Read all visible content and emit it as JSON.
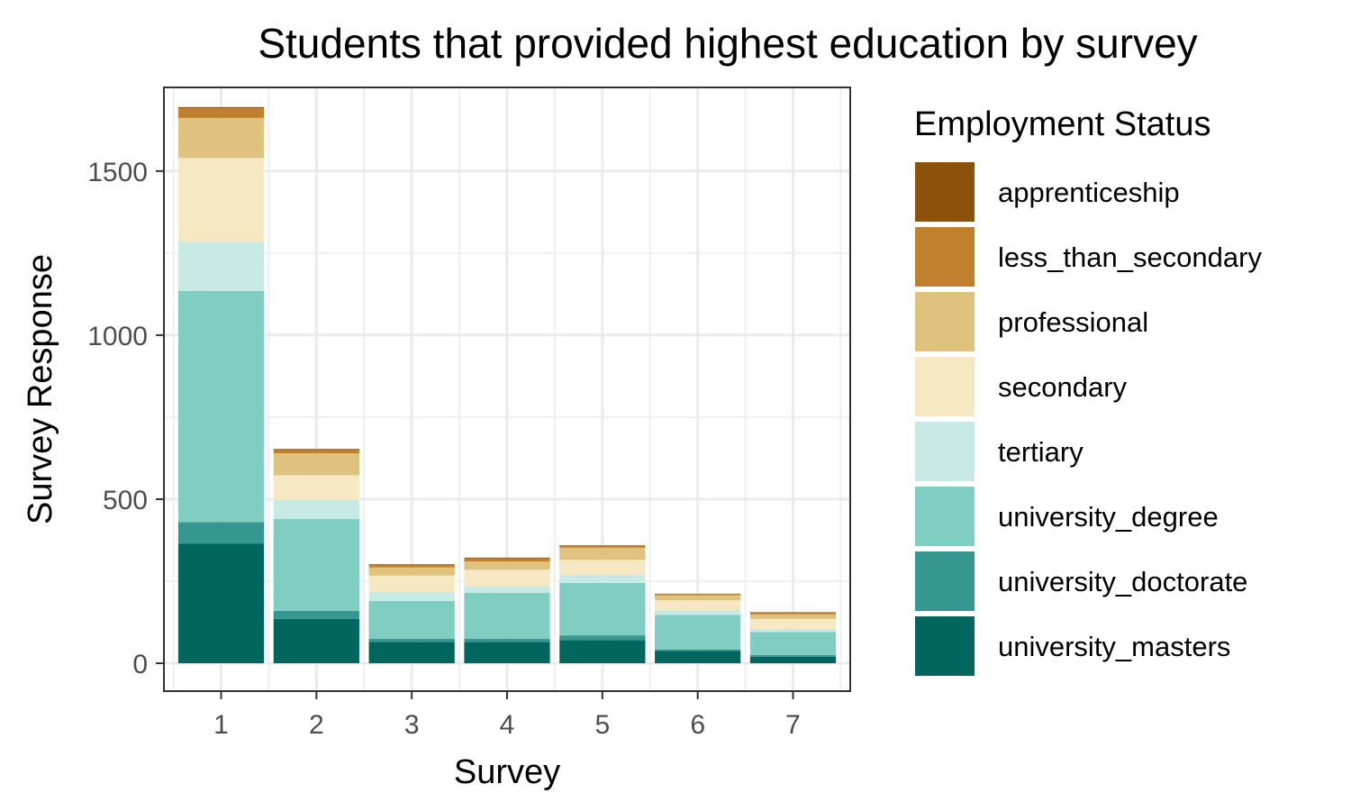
{
  "chart_data": {
    "type": "bar",
    "stacked": true,
    "title": "Students that provided highest education by survey",
    "xlabel": "Survey",
    "ylabel": "Survey Response",
    "categories": [
      "1",
      "2",
      "3",
      "4",
      "5",
      "6",
      "7"
    ],
    "ylim": [
      -85,
      1755
    ],
    "yticks": [
      0,
      500,
      1000,
      1500
    ],
    "grid": true,
    "legend": {
      "title": "Employment Status",
      "position": "right"
    },
    "series": [
      {
        "name": "university_masters",
        "color": "#01665e",
        "values": [
          365,
          135,
          65,
          65,
          70,
          38,
          20
        ]
      },
      {
        "name": "university_doctorate",
        "color": "#35978f",
        "values": [
          65,
          25,
          10,
          10,
          15,
          4,
          5
        ]
      },
      {
        "name": "university_degree",
        "color": "#80cdc1",
        "values": [
          705,
          280,
          115,
          140,
          160,
          105,
          70
        ]
      },
      {
        "name": "tertiary",
        "color": "#c7eae5",
        "values": [
          150,
          58,
          27,
          20,
          25,
          15,
          10
        ]
      },
      {
        "name": "secondary",
        "color": "#f6e8c3",
        "values": [
          255,
          75,
          50,
          50,
          45,
          30,
          30
        ]
      },
      {
        "name": "professional",
        "color": "#dfc27d",
        "values": [
          122,
          67,
          25,
          25,
          37,
          15,
          14
        ]
      },
      {
        "name": "less_than_secondary",
        "color": "#bf812d",
        "values": [
          30,
          10,
          8,
          10,
          7,
          4,
          6
        ]
      },
      {
        "name": "apprenticeship",
        "color": "#8c510a",
        "values": [
          3,
          3,
          2,
          2,
          1,
          1,
          1
        ]
      }
    ]
  }
}
